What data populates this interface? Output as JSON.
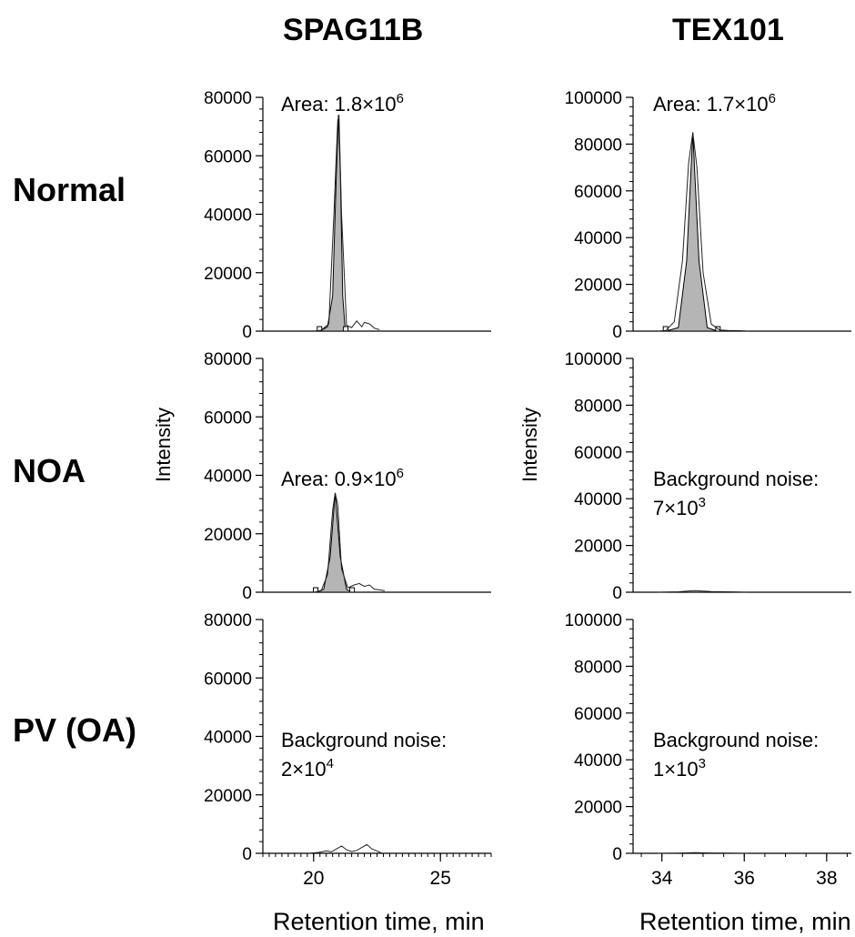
{
  "column_titles": [
    "SPAG11B",
    "TEX101"
  ],
  "row_labels": [
    "Normal",
    "NOA",
    "PV (OA)"
  ],
  "y_axis_label": "Intensity",
  "x_axis_label": "Retention time, min",
  "chart_data": [
    {
      "type": "line",
      "panel": "SPAG11B-Normal",
      "xlim": [
        18,
        27
      ],
      "ylim": [
        0,
        80000
      ],
      "yticks": [
        0,
        20000,
        40000,
        60000,
        80000
      ],
      "xticks": [],
      "annotation": {
        "base": "Area: 1.8×10",
        "exp": "6"
      },
      "peak": {
        "x": [
          20.25,
          20.55,
          20.75,
          20.9,
          20.98,
          21.05,
          21.15,
          21.25
        ],
        "y": [
          0,
          1500,
          12000,
          55000,
          74000,
          55000,
          12000,
          0
        ]
      },
      "trace": {
        "x": [
          20.0,
          20.3,
          20.6,
          20.8,
          20.95,
          21.0,
          21.1,
          21.3,
          21.5,
          21.7,
          21.9,
          22.0,
          22.2,
          22.4,
          22.6
        ],
        "y": [
          0,
          300,
          2500,
          40000,
          72000,
          74000,
          40000,
          2000,
          1200,
          3500,
          1500,
          3000,
          2500,
          1000,
          500
        ]
      }
    },
    {
      "type": "line",
      "panel": "TEX101-Normal",
      "xlim": [
        33.3,
        38.6
      ],
      "ylim": [
        0,
        100000
      ],
      "yticks": [
        0,
        20000,
        40000,
        60000,
        80000,
        100000
      ],
      "xticks": [],
      "annotation": {
        "base": "Area: 1.7×10",
        "exp": "6"
      },
      "peak": {
        "x": [
          34.1,
          34.4,
          34.6,
          34.75,
          34.9,
          35.1,
          35.35
        ],
        "y": [
          0,
          1500,
          30000,
          85000,
          30000,
          1500,
          0
        ]
      },
      "trace": {
        "x": [
          33.9,
          34.1,
          34.3,
          34.5,
          34.65,
          34.75,
          34.85,
          35.0,
          35.2,
          35.4,
          35.6,
          35.9,
          36.1
        ],
        "y": [
          0,
          300,
          4000,
          30000,
          72000,
          85000,
          70000,
          25000,
          3000,
          500,
          300,
          200,
          0
        ]
      }
    },
    {
      "type": "line",
      "panel": "SPAG11B-NOA",
      "xlim": [
        18,
        27
      ],
      "ylim": [
        0,
        80000
      ],
      "yticks": [
        0,
        20000,
        40000,
        60000,
        80000
      ],
      "xticks": [],
      "annotation": {
        "base": "Area: 0.9×10",
        "exp": "6"
      },
      "peak": {
        "x": [
          20.1,
          20.4,
          20.65,
          20.85,
          21.05,
          21.3,
          21.5
        ],
        "y": [
          0,
          1000,
          12000,
          34000,
          12000,
          1000,
          0
        ]
      },
      "trace": {
        "x": [
          20.0,
          20.3,
          20.55,
          20.75,
          20.85,
          20.95,
          21.1,
          21.35,
          21.6,
          21.8,
          22.0,
          22.2,
          22.4,
          22.6,
          22.8
        ],
        "y": [
          0,
          500,
          6000,
          28000,
          34000,
          30000,
          8000,
          1500,
          2500,
          3000,
          2000,
          2500,
          1000,
          800,
          500
        ]
      }
    },
    {
      "type": "line",
      "panel": "TEX101-NOA",
      "xlim": [
        33.3,
        38.6
      ],
      "ylim": [
        0,
        100000
      ],
      "yticks": [
        0,
        20000,
        40000,
        60000,
        80000,
        100000
      ],
      "xticks": [],
      "annotation": {
        "base": "Background noise:",
        "line2": "7×10",
        "exp": "3"
      },
      "trace": {
        "x": [
          33.9,
          34.4,
          34.8,
          35.2,
          35.6,
          36.1
        ],
        "y": [
          0,
          200,
          700,
          300,
          200,
          0
        ]
      }
    },
    {
      "type": "line",
      "panel": "SPAG11B-PV",
      "xlim": [
        18,
        27
      ],
      "ylim": [
        0,
        80000
      ],
      "yticks": [
        0,
        20000,
        40000,
        60000,
        80000
      ],
      "xticks": [
        20,
        25
      ],
      "annotation": {
        "base": "Background noise:",
        "line2": "2×10",
        "exp": "4"
      },
      "trace": {
        "x": [
          19.8,
          20.2,
          20.5,
          20.7,
          20.9,
          21.1,
          21.3,
          21.5,
          21.7,
          21.9,
          22.1,
          22.3,
          22.5,
          22.7
        ],
        "y": [
          0,
          300,
          800,
          500,
          1500,
          2500,
          1200,
          600,
          1000,
          2000,
          3000,
          1500,
          800,
          0
        ]
      }
    },
    {
      "type": "line",
      "panel": "TEX101-PV",
      "xlim": [
        33.3,
        38.6
      ],
      "ylim": [
        0,
        100000
      ],
      "yticks": [
        0,
        20000,
        40000,
        60000,
        80000,
        100000
      ],
      "xticks": [
        34,
        36,
        38
      ],
      "annotation": {
        "base": "Background  noise:",
        "line2": "1×10",
        "exp": "3"
      },
      "trace": {
        "x": [
          33.9,
          34.4,
          34.8,
          35.2,
          35.6,
          36.1
        ],
        "y": [
          0,
          100,
          300,
          150,
          100,
          0
        ]
      }
    }
  ]
}
